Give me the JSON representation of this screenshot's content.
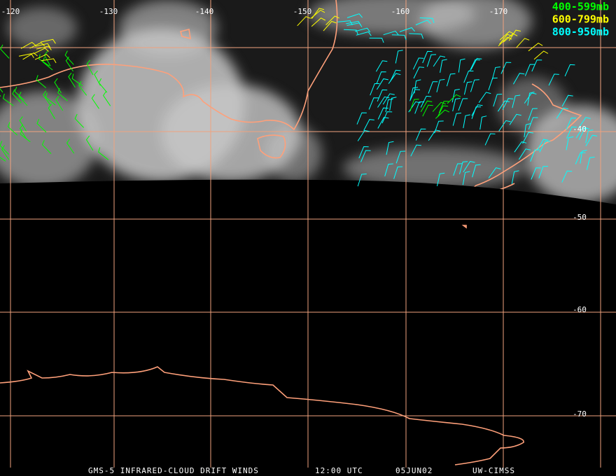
{
  "map": {
    "lon_labels": [
      "-120",
      "-130",
      "-140",
      "-150",
      "-160",
      "-170"
    ],
    "lat_labels": [
      "-40",
      "-50",
      "-60",
      "-70"
    ]
  },
  "legend": [
    "400-599mb",
    "600-799mb",
    "800-950mb"
  ],
  "footer": [
    "GMS-5 INFRARED-CLOUD DRIFT WINDS",
    "12:00 UTC",
    "05JUN02",
    "UW-CIMSS"
  ]
}
